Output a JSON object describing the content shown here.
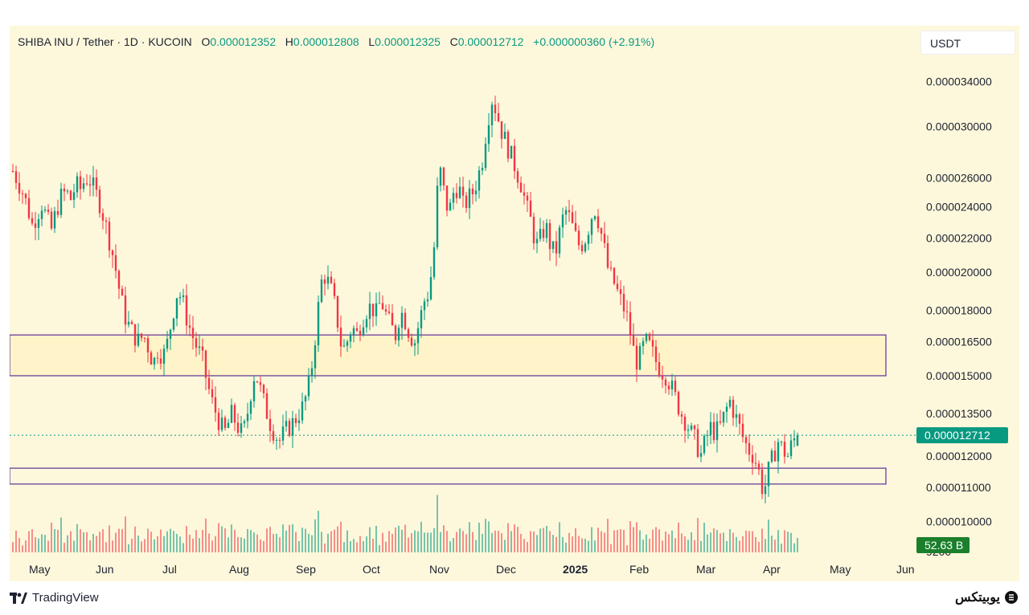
{
  "header": {
    "symbol": "SHIBA INU / Tether · 1D · KUCOIN",
    "o_label": "O",
    "o_value": "0.000012352",
    "h_label": "H",
    "h_value": "0.000012808",
    "l_label": "L",
    "l_value": "0.000012325",
    "c_label": "C",
    "c_value": "0.000012712",
    "change": "+0.000000360 (+2.91%)"
  },
  "currency": "USDT",
  "colors": {
    "up": "#089981",
    "down": "#f23645",
    "zone_border": "#6a3d9a",
    "zone_fill": "#fff3c4",
    "background": "#fdf8dc",
    "price_tag": "#089981",
    "volume_tag": "#1b7f2c"
  },
  "footer": {
    "brand": "TradingView",
    "watermark": "یوبیتکس"
  },
  "chart_data": {
    "type": "candlestick",
    "y_scale": "log",
    "y_ticks": [
      "0.000034000",
      "0.000030000",
      "0.000026000",
      "0.000024000",
      "0.000022000",
      "0.000020000",
      "0.000018000",
      "0.000016500",
      "0.000015000",
      "0.000013500",
      "0.000012000",
      "0.000011000",
      "0.000010000",
      "9200"
    ],
    "y_tick_values": [
      3.4e-05,
      3e-05,
      2.6e-05,
      2.4e-05,
      2.2e-05,
      2e-05,
      1.8e-05,
      1.65e-05,
      1.5e-05,
      1.35e-05,
      1.2e-05,
      1.1e-05,
      1e-05,
      9.2e-06
    ],
    "x_labels": [
      "May",
      "Jun",
      "Jul",
      "Aug",
      "Sep",
      "Oct",
      "Nov",
      "Dec",
      "2025",
      "Feb",
      "Mar",
      "Apr",
      "May",
      "Jun"
    ],
    "last_price": "0.000012712",
    "volume_label": "52.63 B",
    "zones": [
      {
        "low": 1.5e-05,
        "high": 1.68e-05
      },
      {
        "low": 1.11e-05,
        "high": 1.16e-05
      }
    ],
    "price_path": [
      2.65e-05,
      2.58e-05,
      2.5e-05,
      2.4e-05,
      2.28e-05,
      2.35e-05,
      2.42e-05,
      2.32e-05,
      2.25e-05,
      2.38e-05,
      2.47e-05,
      2.5e-05,
      2.45e-05,
      2.55e-05,
      2.52e-05,
      2.6e-05,
      2.58e-05,
      2.5e-05,
      2.42e-05,
      2.3e-05,
      2.18e-05,
      2.05e-05,
      1.9e-05,
      1.78e-05,
      1.72e-05,
      1.68e-05,
      1.65e-05,
      1.68e-05,
      1.62e-05,
      1.55e-05,
      1.62e-05,
      1.58e-05,
      1.65e-05,
      1.78e-05,
      1.9e-05,
      1.85e-05,
      1.75e-05,
      1.68e-05,
      1.62e-05,
      1.58e-05,
      1.48e-05,
      1.4e-05,
      1.35e-05,
      1.3e-05,
      1.28e-05,
      1.35e-05,
      1.32e-05,
      1.28e-05,
      1.3e-05,
      1.42e-05,
      1.52e-05,
      1.45e-05,
      1.38e-05,
      1.32e-05,
      1.28e-05,
      1.25e-05,
      1.28e-05,
      1.3e-05,
      1.32e-05,
      1.35e-05,
      1.38e-05,
      1.45e-05,
      1.58e-05,
      1.8e-05,
      2e-05,
      1.95e-05,
      1.88e-05,
      1.75e-05,
      1.6e-05,
      1.65e-05,
      1.72e-05,
      1.68e-05,
      1.75e-05,
      1.8e-05,
      1.82e-05,
      1.78e-05,
      1.85e-05,
      1.78e-05,
      1.72e-05,
      1.68e-05,
      1.8e-05,
      1.75e-05,
      1.68e-05,
      1.65e-05,
      1.75e-05,
      1.85e-05,
      1.9e-05,
      2.15e-05,
      2.7e-05,
      2.5e-05,
      2.35e-05,
      2.5e-05,
      2.55e-05,
      2.4e-05,
      2.45e-05,
      2.5e-05,
      2.6e-05,
      2.75e-05,
      3.05e-05,
      3.25e-05,
      3.1e-05,
      2.95e-05,
      2.85e-05,
      2.75e-05,
      2.65e-05,
      2.55e-05,
      2.4e-05,
      2.3e-05,
      2.15e-05,
      2.2e-05,
      2.28e-05,
      2.15e-05,
      2.1e-05,
      2.25e-05,
      2.38e-05,
      2.32e-05,
      2.22e-05,
      2.15e-05,
      2.18e-05,
      2.28e-05,
      2.4e-05,
      2.3e-05,
      2.15e-05,
      2e-05,
      1.95e-05,
      1.88e-05,
      1.82e-05,
      1.75e-05,
      1.62e-05,
      1.55e-05,
      1.62e-05,
      1.65e-05,
      1.6e-05,
      1.55e-05,
      1.52e-05,
      1.5e-05,
      1.45e-05,
      1.4e-05,
      1.35e-05,
      1.32e-05,
      1.28e-05,
      1.25e-05,
      1.2e-05,
      1.25e-05,
      1.3e-05,
      1.28e-05,
      1.3e-05,
      1.35e-05,
      1.4e-05,
      1.35e-05,
      1.3e-05,
      1.25e-05,
      1.22e-05,
      1.2e-05,
      1.15e-05,
      1.08e-05,
      1.15e-05,
      1.2e-05,
      1.25e-05,
      1.22e-05,
      1.2e-05,
      1.25e-05,
      1.27e-05
    ],
    "last_candle_x_label": "Apr"
  }
}
